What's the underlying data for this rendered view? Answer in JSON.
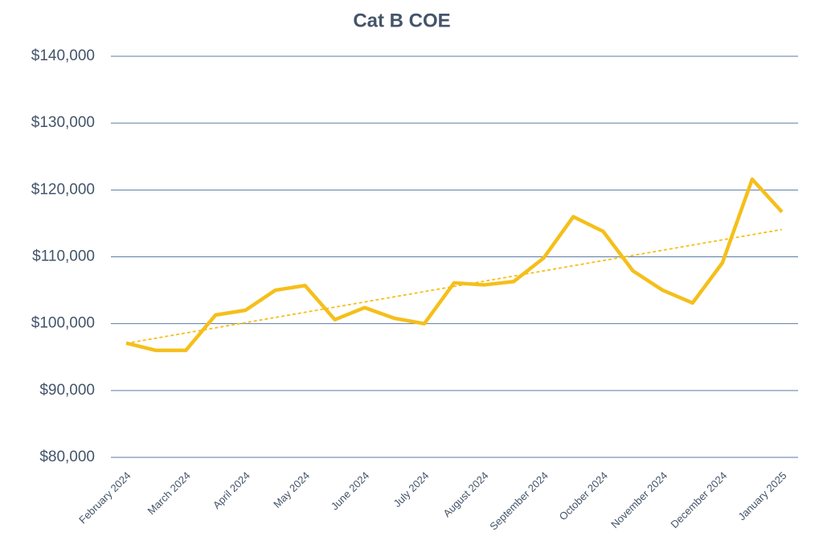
{
  "chart_data": {
    "type": "line",
    "title": "Cat B COE",
    "categories": [
      "February 2024",
      null,
      "March 2024",
      null,
      "April 2024",
      null,
      "May 2024",
      null,
      "June 2024",
      null,
      "July 2024",
      null,
      "August 2024",
      null,
      "September 2024",
      null,
      "October 2024",
      null,
      "November 2024",
      null,
      "December 2024",
      null,
      "January 2025"
    ],
    "series": [
      {
        "name": "Cat B COE",
        "color": "#f5bf1b",
        "values": [
          97100,
          96000,
          96000,
          101300,
          102000,
          105000,
          105700,
          100600,
          102400,
          100800,
          100000,
          106100,
          105800,
          106300,
          109800,
          116000,
          113800,
          107900,
          105000,
          103100,
          109100,
          121600,
          116700
        ]
      }
    ],
    "trendline": true,
    "ylim": [
      80000,
      140000
    ],
    "yticks": [
      {
        "value": 80000,
        "label": "$80,000"
      },
      {
        "value": 90000,
        "label": "$90,000"
      },
      {
        "value": 100000,
        "label": "$100,000"
      },
      {
        "value": 110000,
        "label": "$110,000"
      },
      {
        "value": 120000,
        "label": "$120,000"
      },
      {
        "value": 130000,
        "label": "$130,000"
      },
      {
        "value": 140000,
        "label": "$140,000"
      }
    ],
    "grid": true
  }
}
